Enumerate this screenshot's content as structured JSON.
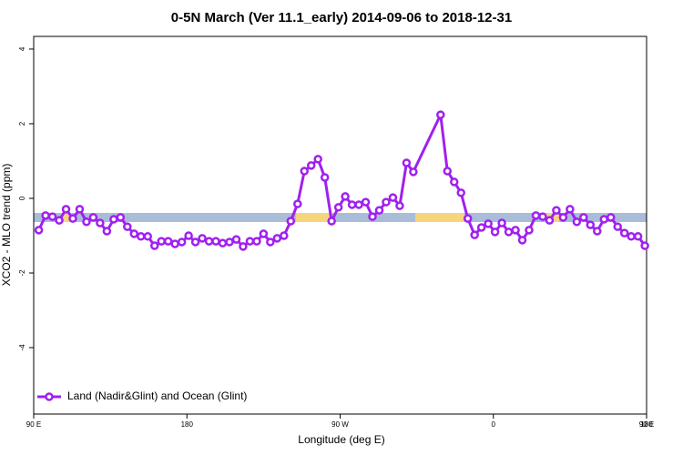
{
  "chart_data": {
    "type": "line",
    "title": "0-5N March (Ver 11.1_early)   2014-09-06 to 2018-12-31",
    "x_label": "Longitude (deg E)",
    "y_label": "XCO2 - MLO trend (ppm)",
    "xlim": [
      90,
      450
    ],
    "ylim": [
      -5.78,
      4.34
    ],
    "xticks": [
      {
        "value": 90,
        "label": "90 E"
      },
      {
        "value": 180,
        "label": "180"
      },
      {
        "value": 270,
        "label": "90 W"
      },
      {
        "value": 360,
        "label": "0"
      },
      {
        "value": 450,
        "label": "90 E"
      },
      {
        "value": 540,
        "label": "180"
      }
    ],
    "yticks": [
      -4,
      -2,
      0,
      2,
      4
    ],
    "legend_position": "bottom-left",
    "series": [
      {
        "name": "Land (Nadir&Glint) and Ocean (Glint)",
        "color": "#a020f0",
        "x": [
          93,
          97,
          101,
          105,
          109,
          113,
          117,
          121,
          125,
          129,
          133,
          137,
          141,
          145,
          149,
          153,
          157,
          161,
          165,
          169,
          173,
          177,
          181,
          185,
          189,
          193,
          197,
          201,
          205,
          209,
          213,
          217,
          221,
          225,
          229,
          233,
          237,
          241,
          245,
          249,
          253,
          257,
          261,
          265,
          269,
          273,
          277,
          281,
          285,
          289,
          293,
          297,
          301,
          305,
          309,
          313,
          329,
          333,
          337,
          341,
          345,
          349,
          353,
          357,
          361,
          365,
          369,
          373,
          377,
          381,
          385,
          389,
          393,
          397,
          401,
          405,
          409,
          413,
          417,
          421,
          425,
          429,
          433,
          437,
          441,
          445,
          449
        ],
        "values": [
          -0.85,
          -0.46,
          -0.49,
          -0.59,
          -0.29,
          -0.54,
          -0.29,
          -0.63,
          -0.51,
          -0.66,
          -0.88,
          -0.56,
          -0.51,
          -0.76,
          -0.95,
          -1.02,
          -1.02,
          -1.27,
          -1.15,
          -1.15,
          -1.22,
          -1.17,
          -1.0,
          -1.17,
          -1.07,
          -1.15,
          -1.15,
          -1.2,
          -1.17,
          -1.1,
          -1.29,
          -1.15,
          -1.15,
          -0.95,
          -1.17,
          -1.07,
          -1.0,
          -0.61,
          -0.15,
          0.73,
          0.88,
          1.05,
          0.56,
          -0.61,
          -0.24,
          0.05,
          -0.17,
          -0.17,
          -0.1,
          -0.49,
          -0.32,
          -0.1,
          0.02,
          -0.2,
          0.95,
          0.71,
          2.24,
          0.73,
          0.44,
          0.15,
          -0.54,
          -0.98,
          -0.78,
          -0.68,
          -0.9,
          -0.66,
          -0.9,
          -0.85,
          -1.12,
          -0.85,
          -0.46,
          -0.49,
          -0.59,
          -0.32,
          -0.51,
          -0.29,
          -0.63,
          -0.51,
          -0.71,
          -0.88,
          -0.56,
          -0.51,
          -0.76,
          -0.93,
          -1.02,
          -1.02,
          -1.27
        ]
      }
    ]
  }
}
